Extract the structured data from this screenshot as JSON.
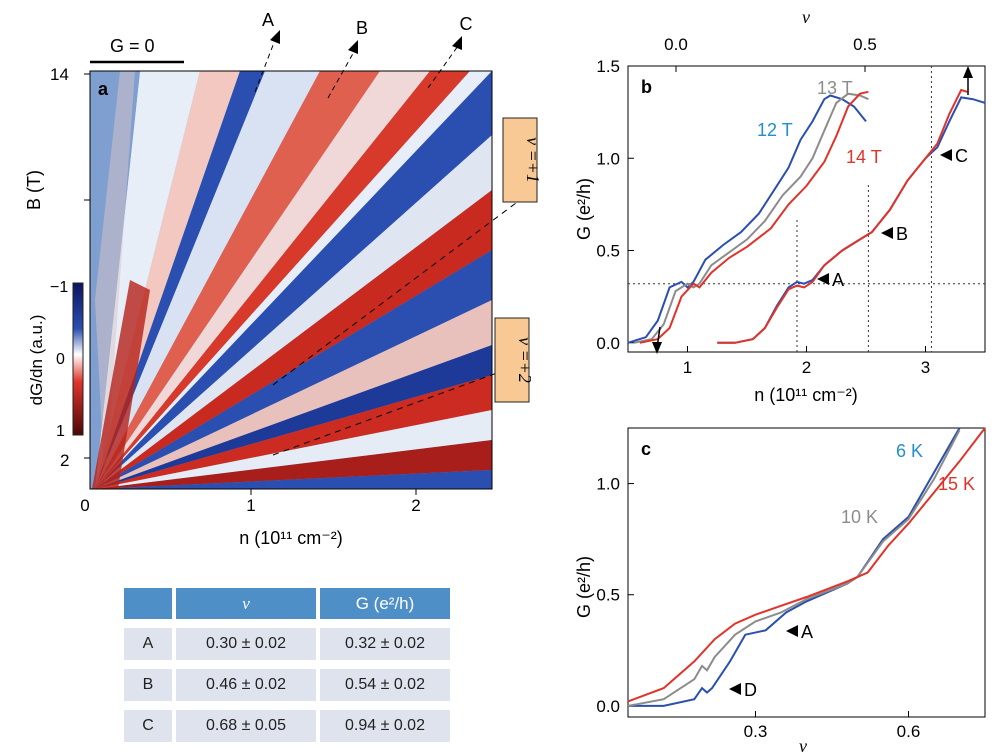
{
  "panel_a": {
    "letter": "a",
    "g0_label": "G = 0",
    "callouts": [
      "A",
      "B",
      "C"
    ],
    "nu_boxes": [
      "ν =+1",
      "ν =+2"
    ],
    "colorbar": {
      "title": "dG/dn (a.u.)",
      "ticks": [
        "−1",
        "0",
        "1"
      ]
    }
  },
  "panel_b": {
    "letter": "b"
  },
  "panel_c": {
    "letter": "c"
  },
  "table": {
    "headers": [
      "",
      "ν",
      "G (e²/h)"
    ],
    "rows": [
      [
        "A",
        "0.30 ± 0.02",
        "0.32 ± 0.02"
      ],
      [
        "B",
        "0.46 ± 0.02",
        "0.54 ± 0.02"
      ],
      [
        "C",
        "0.68 ± 0.05",
        "0.94 ± 0.02"
      ]
    ]
  },
  "colors": {
    "blue": "#2a4fb0",
    "gray": "#8c8c8c",
    "red": "#e0342a",
    "header": "#4f8fc8",
    "cell": "#dfe3ee",
    "box": "#f9c995"
  },
  "chart_data": [
    {
      "panel": "a",
      "type": "heatmap",
      "xlabel": "n (10¹¹ cm⁻²)",
      "ylabel": "B (T)",
      "x_ticks": [
        "0",
        "1",
        "2"
      ],
      "y_ticks": [
        "14",
        "2"
      ],
      "xlim": [
        0,
        2.5
      ],
      "fan_lines": [
        {
          "label": "ν =+1",
          "nu": 1
        },
        {
          "label": "ν =+2",
          "nu": 2
        }
      ]
    },
    {
      "panel": "b",
      "type": "line",
      "xlabel": "n (10¹¹ cm⁻²)",
      "ylabel": "G (e²/h)",
      "top_xlabel": "ν",
      "top_ticks": [
        "0.0",
        "0.5"
      ],
      "x_ticks": [
        "1",
        "2",
        "3"
      ],
      "y_ticks": [
        "0.0",
        "0.5",
        "1.0",
        "1.5"
      ],
      "xlim": [
        0.5,
        3.5
      ],
      "ylim": [
        -0.05,
        1.5
      ],
      "guides": {
        "horizontal_G": 0.32,
        "vertical_n": [
          1.92,
          2.52,
          3.05
        ]
      },
      "series": [
        {
          "name": "12 T",
          "color": "#2a4fb0",
          "x": [
            0.5,
            0.65,
            0.75,
            0.85,
            0.95,
            1.0,
            1.05,
            1.15,
            1.3,
            1.45,
            1.6,
            1.75,
            1.85,
            1.95,
            2.05,
            2.15,
            2.2,
            2.3,
            2.4,
            2.5
          ],
          "y": [
            0.0,
            0.03,
            0.12,
            0.3,
            0.33,
            0.3,
            0.33,
            0.45,
            0.53,
            0.6,
            0.7,
            0.85,
            0.95,
            1.1,
            1.2,
            1.32,
            1.34,
            1.32,
            1.28,
            1.2
          ]
        },
        {
          "name": "13 T",
          "color": "#8c8c8c",
          "x": [
            0.55,
            0.7,
            0.8,
            0.9,
            1.0,
            1.05,
            1.1,
            1.2,
            1.35,
            1.5,
            1.65,
            1.8,
            1.95,
            2.05,
            2.15,
            2.25,
            2.35,
            2.45,
            2.52
          ],
          "y": [
            0.0,
            0.02,
            0.1,
            0.28,
            0.32,
            0.3,
            0.32,
            0.42,
            0.49,
            0.56,
            0.66,
            0.8,
            0.9,
            1.0,
            1.15,
            1.3,
            1.35,
            1.34,
            1.32
          ]
        },
        {
          "name": "14 T",
          "color": "#e0342a",
          "x": [
            0.6,
            0.75,
            0.85,
            0.95,
            1.05,
            1.1,
            1.2,
            1.35,
            1.5,
            1.7,
            1.85,
            2.0,
            2.15,
            2.25,
            2.35,
            2.45,
            2.52
          ],
          "y": [
            0.0,
            0.02,
            0.08,
            0.25,
            0.32,
            0.3,
            0.38,
            0.46,
            0.52,
            0.62,
            0.75,
            0.85,
            0.98,
            1.12,
            1.28,
            1.35,
            1.36
          ]
        },
        {
          "name": "shifted 12 T",
          "color": "#2a4fb0",
          "x": [
            1.25,
            1.4,
            1.55,
            1.65,
            1.75,
            1.85,
            1.92,
            1.98,
            2.05,
            2.15,
            2.3,
            2.45,
            2.55,
            2.7,
            2.85,
            3.0,
            3.1,
            3.2,
            3.3,
            3.4,
            3.5
          ],
          "y": [
            0.0,
            0.0,
            0.02,
            0.08,
            0.2,
            0.3,
            0.33,
            0.32,
            0.34,
            0.42,
            0.5,
            0.56,
            0.6,
            0.72,
            0.88,
            1.0,
            1.06,
            1.2,
            1.33,
            1.32,
            1.3
          ]
        },
        {
          "name": "shifted 14 T",
          "color": "#e0342a",
          "x": [
            1.25,
            1.4,
            1.55,
            1.65,
            1.75,
            1.85,
            1.92,
            1.98,
            2.05,
            2.15,
            2.3,
            2.45,
            2.55,
            2.7,
            2.85,
            3.0,
            3.1,
            3.2,
            3.3,
            3.35
          ],
          "y": [
            0.0,
            0.0,
            0.02,
            0.08,
            0.19,
            0.29,
            0.31,
            0.3,
            0.33,
            0.42,
            0.5,
            0.56,
            0.6,
            0.72,
            0.88,
            1.0,
            1.08,
            1.24,
            1.37,
            1.36
          ]
        }
      ],
      "annotations": [
        "A",
        "B",
        "C"
      ]
    },
    {
      "panel": "c",
      "type": "line",
      "xlabel": "ν",
      "ylabel": "G (e²/h)",
      "x_ticks": [
        "0.3",
        "0.6"
      ],
      "y_ticks": [
        "0.0",
        "0.5",
        "1.0"
      ],
      "xlim": [
        0.05,
        0.75
      ],
      "ylim": [
        -0.05,
        1.25
      ],
      "series": [
        {
          "name": "6 K",
          "color": "#2a4fb0",
          "x": [
            0.05,
            0.12,
            0.18,
            0.195,
            0.205,
            0.215,
            0.25,
            0.28,
            0.32,
            0.36,
            0.4,
            0.48,
            0.5,
            0.55,
            0.6,
            0.65,
            0.7
          ],
          "y": [
            0.0,
            0.0,
            0.03,
            0.08,
            0.06,
            0.08,
            0.2,
            0.32,
            0.34,
            0.42,
            0.47,
            0.55,
            0.58,
            0.75,
            0.85,
            1.05,
            1.25
          ]
        },
        {
          "name": "10 K",
          "color": "#8c8c8c",
          "x": [
            0.05,
            0.12,
            0.18,
            0.195,
            0.205,
            0.22,
            0.26,
            0.3,
            0.35,
            0.4,
            0.48,
            0.5,
            0.55,
            0.6,
            0.65,
            0.7
          ],
          "y": [
            0.0,
            0.03,
            0.12,
            0.18,
            0.16,
            0.22,
            0.32,
            0.38,
            0.42,
            0.48,
            0.55,
            0.58,
            0.74,
            0.84,
            1.02,
            1.24
          ]
        },
        {
          "name": "15 K",
          "color": "#e0342a",
          "x": [
            0.05,
            0.12,
            0.18,
            0.22,
            0.26,
            0.3,
            0.35,
            0.4,
            0.48,
            0.52,
            0.56,
            0.6,
            0.65,
            0.7,
            0.75
          ],
          "y": [
            0.02,
            0.08,
            0.2,
            0.3,
            0.37,
            0.41,
            0.45,
            0.49,
            0.56,
            0.6,
            0.72,
            0.82,
            0.96,
            1.1,
            1.25
          ]
        }
      ],
      "annotations": [
        "A",
        "D"
      ]
    }
  ]
}
